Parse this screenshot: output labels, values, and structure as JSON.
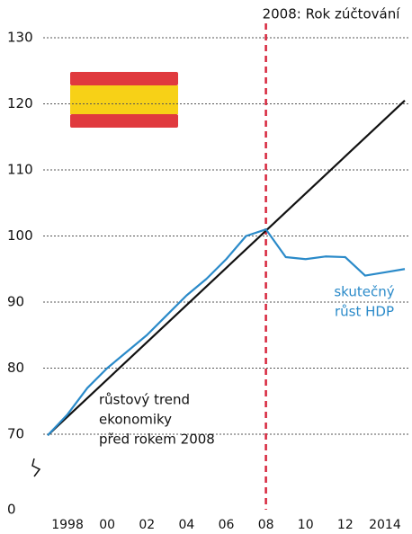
{
  "chart_data": {
    "type": "line",
    "title": "2008: Rok zúčtování",
    "x": [
      1997,
      1998,
      1999,
      2000,
      2001,
      2002,
      2003,
      2004,
      2005,
      2006,
      2007,
      2008,
      2009,
      2010,
      2011,
      2012,
      2013,
      2014,
      2015
    ],
    "xlim": [
      1997,
      2015
    ],
    "xticks": [
      1998,
      {
        "value": 2000,
        "label": "00"
      },
      {
        "value": 2002,
        "label": "02"
      },
      {
        "value": 2004,
        "label": "04"
      },
      {
        "value": 2006,
        "label": "06"
      },
      {
        "value": 2008,
        "label": "08"
      },
      {
        "value": 2010,
        "label": "10"
      },
      {
        "value": 2012,
        "label": "12"
      },
      2014
    ],
    "ylim": [
      0,
      130
    ],
    "yticks": [
      0,
      70,
      80,
      90,
      100,
      110,
      120,
      130
    ],
    "axis_break": true,
    "grid": true,
    "marker_x": 2008,
    "marker_color": "#d7263d",
    "series": [
      {
        "color": "#111111",
        "x": [
          1997,
          2015
        ],
        "values": [
          69,
          120.5
        ]
      },
      {
        "color": "#2a8ac9",
        "values": [
          69,
          73,
          77,
          80,
          82.5,
          85,
          88,
          91,
          93.5,
          96.5,
          100,
          101,
          96.8,
          96.5,
          96.9,
          96.8,
          94,
          94.5,
          95
        ]
      }
    ],
    "annotations": [
      {
        "lines": [
          "růstový trend",
          "ekonomiky",
          "před rokem 2008"
        ],
        "color": "#111111"
      },
      {
        "lines": [
          "skutečný",
          "růst HDP"
        ],
        "color": "#2a8ac9"
      }
    ]
  }
}
